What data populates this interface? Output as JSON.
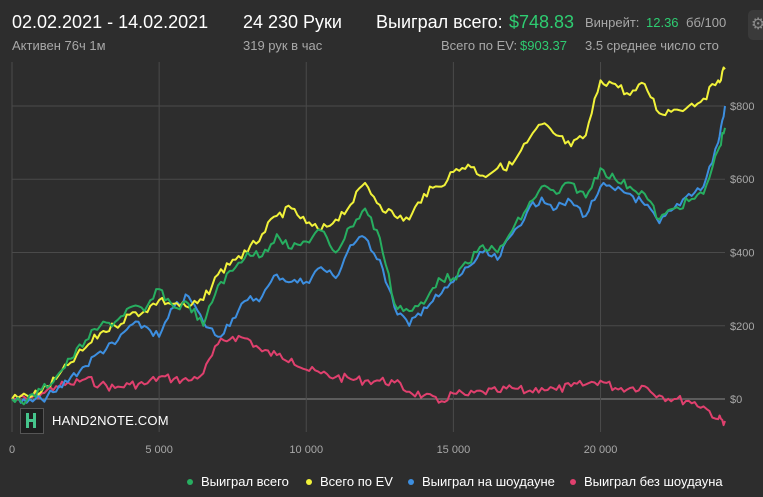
{
  "header": {
    "date_range": "02.02.2021 - 14.02.2021",
    "active_time": "Активен 76ч 1м",
    "hands": "24 230 Руки",
    "hands_per_hour": "319 рук в час",
    "won_total_label": "Выиграл всего:",
    "won_total_value": "$748.83",
    "ev_total_label": "Всего по EV:",
    "ev_total_value": "$903.37",
    "winrate_label": "Винрейт:",
    "winrate_value": "12.36",
    "winrate_unit": "бб/100",
    "avg_label": "3.5 среднее число сто",
    "settings_icon": "gear-icon"
  },
  "logo": {
    "text": "HAND2NOTE.COM"
  },
  "colors": {
    "background": "#2d2d2d",
    "grid": "#4a4a4a",
    "zero_line": "#8a8a8a",
    "won_total": "#27ae60",
    "ev_total": "#f1f23a",
    "showdown": "#3d8fe0",
    "non_showdown": "#e0406e"
  },
  "chart_data": {
    "type": "line",
    "x_ticks": [
      0,
      5000,
      10000,
      15000,
      20000
    ],
    "x_tick_labels": [
      "0",
      "5 000",
      "10 000",
      "15 000",
      "20 000"
    ],
    "y_ticks": [
      0,
      200,
      400,
      600,
      800
    ],
    "y_tick_labels": [
      "$0",
      "$200",
      "$400",
      "$600",
      "$800"
    ],
    "xlim": [
      0,
      24230
    ],
    "ylim": [
      -90,
      920
    ],
    "grid": true,
    "legend_position": "bottom",
    "series": [
      {
        "name": "Выиграл всего",
        "color": "#27ae60",
        "x": [
          0,
          500,
          1000,
          1500,
          2000,
          2500,
          3000,
          3500,
          4000,
          4500,
          5000,
          5500,
          6000,
          6500,
          7000,
          7500,
          8000,
          8500,
          9000,
          9500,
          10000,
          10500,
          11000,
          11500,
          12000,
          12500,
          13000,
          13500,
          14000,
          14500,
          15000,
          15500,
          16000,
          16500,
          17000,
          17500,
          18000,
          18500,
          19000,
          19500,
          20000,
          20500,
          21000,
          21500,
          22000,
          22500,
          23000,
          23500,
          24000,
          24230
        ],
        "y": [
          0,
          -5,
          25,
          60,
          110,
          160,
          200,
          210,
          250,
          240,
          300,
          250,
          260,
          200,
          310,
          350,
          400,
          390,
          450,
          410,
          430,
          460,
          400,
          470,
          520,
          440,
          260,
          240,
          260,
          330,
          330,
          370,
          420,
          400,
          460,
          520,
          580,
          560,
          590,
          550,
          630,
          600,
          580,
          560,
          490,
          520,
          540,
          560,
          680,
          740
        ]
      },
      {
        "name": "Всего по EV",
        "color": "#f1f23a",
        "x": [
          0,
          500,
          1000,
          1500,
          2000,
          2500,
          3000,
          3500,
          4000,
          4500,
          5000,
          5500,
          6000,
          6500,
          7000,
          7500,
          8000,
          8500,
          9000,
          9500,
          10000,
          10500,
          11000,
          11500,
          12000,
          12500,
          13000,
          13500,
          14000,
          14500,
          15000,
          15500,
          16000,
          16500,
          17000,
          17500,
          18000,
          18500,
          19000,
          19500,
          20000,
          20500,
          21000,
          21500,
          22000,
          22500,
          23000,
          23500,
          24000,
          24230
        ],
        "y": [
          0,
          10,
          20,
          55,
          100,
          140,
          180,
          200,
          230,
          240,
          270,
          260,
          250,
          270,
          340,
          380,
          400,
          450,
          500,
          520,
          480,
          460,
          490,
          530,
          590,
          530,
          500,
          490,
          560,
          580,
          620,
          640,
          610,
          630,
          640,
          700,
          750,
          720,
          690,
          720,
          870,
          860,
          830,
          860,
          780,
          790,
          800,
          820,
          870,
          900
        ]
      },
      {
        "name": "Выиграл на шоудауне",
        "color": "#3d8fe0",
        "x": [
          0,
          500,
          1000,
          1500,
          2000,
          2500,
          3000,
          3500,
          4000,
          4500,
          5000,
          5500,
          6000,
          6500,
          7000,
          7500,
          8000,
          8500,
          9000,
          9500,
          10000,
          10500,
          11000,
          11500,
          12000,
          12500,
          13000,
          13500,
          14000,
          14500,
          15000,
          15500,
          16000,
          16500,
          17000,
          17500,
          18000,
          18500,
          19000,
          19500,
          20000,
          20500,
          21000,
          21500,
          22000,
          22500,
          23000,
          23500,
          24000,
          24230
        ],
        "y": [
          0,
          -10,
          0,
          20,
          60,
          90,
          130,
          150,
          200,
          200,
          170,
          250,
          280,
          210,
          170,
          220,
          270,
          280,
          340,
          320,
          320,
          360,
          330,
          420,
          440,
          380,
          250,
          200,
          250,
          280,
          320,
          360,
          400,
          380,
          450,
          510,
          550,
          520,
          540,
          500,
          580,
          570,
          560,
          530,
          480,
          520,
          560,
          580,
          700,
          800
        ]
      },
      {
        "name": "Выиграл без шоудауна",
        "color": "#e0406e",
        "x": [
          0,
          500,
          1000,
          1500,
          2000,
          2500,
          3000,
          3500,
          4000,
          4500,
          5000,
          5500,
          6000,
          6500,
          7000,
          7500,
          8000,
          8500,
          9000,
          9500,
          10000,
          10500,
          11000,
          11500,
          12000,
          12500,
          13000,
          13500,
          14000,
          14500,
          15000,
          15500,
          16000,
          16500,
          17000,
          17500,
          18000,
          18500,
          19000,
          19500,
          20000,
          20500,
          21000,
          21500,
          22000,
          22500,
          23000,
          23500,
          24000,
          24230
        ],
        "y": [
          0,
          0,
          15,
          35,
          40,
          55,
          40,
          30,
          40,
          40,
          60,
          55,
          50,
          70,
          150,
          170,
          165,
          130,
          120,
          110,
          80,
          70,
          60,
          55,
          50,
          50,
          45,
          20,
          10,
          -10,
          15,
          10,
          20,
          20,
          30,
          20,
          30,
          25,
          35,
          40,
          50,
          30,
          30,
          35,
          10,
          0,
          -5,
          -20,
          -55,
          -60
        ]
      }
    ]
  },
  "legend": [
    {
      "label": "Выиграл всего",
      "color": "#27ae60"
    },
    {
      "label": "Всего по EV",
      "color": "#f1f23a"
    },
    {
      "label": "Выиграл на шоудауне",
      "color": "#3d8fe0"
    },
    {
      "label": "Выиграл без шоудауна",
      "color": "#e0406e"
    }
  ]
}
